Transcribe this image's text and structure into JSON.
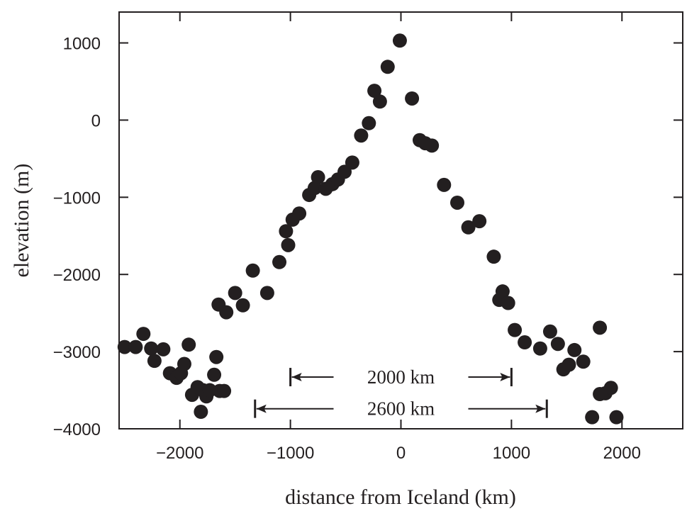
{
  "chart_data": {
    "type": "scatter",
    "title": "",
    "xlabel": "distance from Iceland (km)",
    "ylabel": "elevation (m)",
    "xlim": [
      -2550,
      2550
    ],
    "ylim": [
      -4000,
      1400
    ],
    "x_ticks": [
      -2000,
      -1000,
      0,
      1000,
      2000
    ],
    "y_ticks": [
      1000,
      0,
      -1000,
      -2000,
      -3000,
      -4000
    ],
    "x_tick_labels": [
      "−2000",
      "−1000",
      "0",
      "1000",
      "2000"
    ],
    "y_tick_labels": [
      "1000",
      "0",
      "−1000",
      "−2000",
      "−3000",
      "−4000"
    ],
    "grid": false,
    "marker_color": "#231f20",
    "points": [
      {
        "x": -2500,
        "y": -2940
      },
      {
        "x": -2400,
        "y": -2940
      },
      {
        "x": -2330,
        "y": -2770
      },
      {
        "x": -2260,
        "y": -2960
      },
      {
        "x": -2230,
        "y": -3120
      },
      {
        "x": -2150,
        "y": -2970
      },
      {
        "x": -2090,
        "y": -3280
      },
      {
        "x": -2030,
        "y": -3340
      },
      {
        "x": -1990,
        "y": -3280
      },
      {
        "x": -1960,
        "y": -3160
      },
      {
        "x": -1920,
        "y": -2910
      },
      {
        "x": -1890,
        "y": -3560
      },
      {
        "x": -1840,
        "y": -3460
      },
      {
        "x": -1810,
        "y": -3780
      },
      {
        "x": -1790,
        "y": -3500
      },
      {
        "x": -1760,
        "y": -3580
      },
      {
        "x": -1730,
        "y": -3500
      },
      {
        "x": -1690,
        "y": -3300
      },
      {
        "x": -1670,
        "y": -3070
      },
      {
        "x": -1640,
        "y": -3510
      },
      {
        "x": -1600,
        "y": -3510
      },
      {
        "x": -1650,
        "y": -2390
      },
      {
        "x": -1580,
        "y": -2490
      },
      {
        "x": -1500,
        "y": -2240
      },
      {
        "x": -1430,
        "y": -2400
      },
      {
        "x": -1340,
        "y": -1950
      },
      {
        "x": -1210,
        "y": -2240
      },
      {
        "x": -1100,
        "y": -1840
      },
      {
        "x": -1020,
        "y": -1620
      },
      {
        "x": -1040,
        "y": -1440
      },
      {
        "x": -980,
        "y": -1290
      },
      {
        "x": -920,
        "y": -1210
      },
      {
        "x": -830,
        "y": -970
      },
      {
        "x": -780,
        "y": -880
      },
      {
        "x": -750,
        "y": -740
      },
      {
        "x": -680,
        "y": -890
      },
      {
        "x": -620,
        "y": -830
      },
      {
        "x": -570,
        "y": -770
      },
      {
        "x": -510,
        "y": -670
      },
      {
        "x": -440,
        "y": -550
      },
      {
        "x": -360,
        "y": -200
      },
      {
        "x": -290,
        "y": -40
      },
      {
        "x": -240,
        "y": 380
      },
      {
        "x": -190,
        "y": 240
      },
      {
        "x": -120,
        "y": 690
      },
      {
        "x": -10,
        "y": 1030
      },
      {
        "x": 100,
        "y": 280
      },
      {
        "x": 170,
        "y": -260
      },
      {
        "x": 220,
        "y": -300
      },
      {
        "x": 280,
        "y": -330
      },
      {
        "x": 390,
        "y": -840
      },
      {
        "x": 510,
        "y": -1070
      },
      {
        "x": 610,
        "y": -1390
      },
      {
        "x": 710,
        "y": -1310
      },
      {
        "x": 840,
        "y": -1770
      },
      {
        "x": 890,
        "y": -2330
      },
      {
        "x": 920,
        "y": -2220
      },
      {
        "x": 970,
        "y": -2370
      },
      {
        "x": 1030,
        "y": -2720
      },
      {
        "x": 1120,
        "y": -2880
      },
      {
        "x": 1260,
        "y": -2960
      },
      {
        "x": 1350,
        "y": -2740
      },
      {
        "x": 1420,
        "y": -2900
      },
      {
        "x": 1470,
        "y": -3230
      },
      {
        "x": 1520,
        "y": -3170
      },
      {
        "x": 1570,
        "y": -2980
      },
      {
        "x": 1650,
        "y": -3130
      },
      {
        "x": 1730,
        "y": -3850
      },
      {
        "x": 1800,
        "y": -2690
      },
      {
        "x": 1800,
        "y": -3550
      },
      {
        "x": 1850,
        "y": -3540
      },
      {
        "x": 1900,
        "y": -3470
      },
      {
        "x": 1950,
        "y": -3850
      }
    ],
    "annotations": [
      {
        "label": "2000 km",
        "x_start": -1000,
        "x_end": 1000,
        "y": -3330
      },
      {
        "label": "2600 km",
        "x_start": -1320,
        "x_end": 1320,
        "y": -3740
      }
    ]
  }
}
